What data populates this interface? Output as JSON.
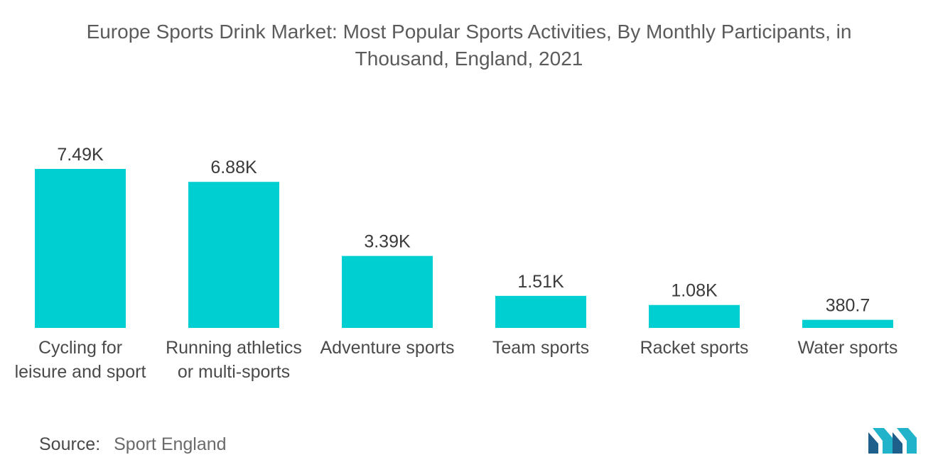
{
  "title_line1": "Europe Sports Drink Market: Most Popular Sports Activities, By Monthly Participants, in",
  "title_line2": "Thousand, England, 2021",
  "source_label": "Source:",
  "source_value": "Sport England",
  "logo_icon": "mordor-intelligence-logo-icon",
  "colors": {
    "bar": "#00cfd1",
    "text": "#3a3a3a",
    "logo_dark": "#1f5f8b",
    "logo_light": "#20b3c9"
  },
  "chart_data": {
    "type": "bar",
    "title": "Europe Sports Drink Market: Most Popular Sports Activities, By Monthly Participants, in Thousand, England, 2021",
    "categories": [
      [
        "Cycling for",
        "leisure and sport"
      ],
      [
        "Running athletics",
        "or multi-sports"
      ],
      [
        "Adventure sports"
      ],
      [
        "Team sports"
      ],
      [
        "Racket sports"
      ],
      [
        "Water sports"
      ]
    ],
    "values": [
      7490,
      6880,
      3390,
      1510,
      1080,
      380.7
    ],
    "value_labels": [
      "7.49K",
      "6.88K",
      "3.39K",
      "1.51K",
      "1.08K",
      "380.7"
    ],
    "xlabel": "",
    "ylabel": "",
    "ylim": [
      0,
      7490
    ],
    "grid": false,
    "legend": "none"
  }
}
